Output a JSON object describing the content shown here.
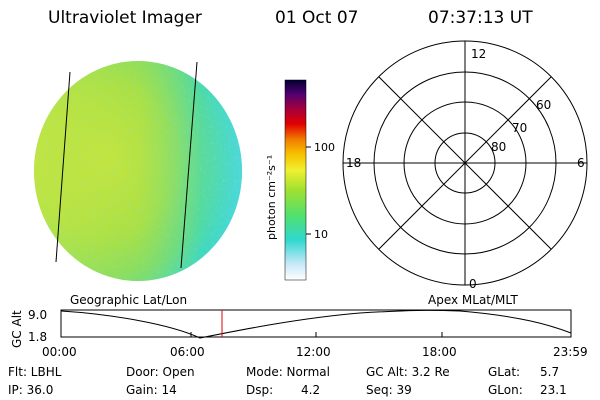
{
  "header": {
    "title": "Ultraviolet Imager",
    "date": "01 Oct 07",
    "time": "07:37:13 UT"
  },
  "colorbar": {
    "label": "photon cm⁻²s⁻¹",
    "ticks": [
      "100",
      "10"
    ],
    "scale": "log",
    "colors": [
      "#ffffff",
      "#c8e8f8",
      "#30d8d0",
      "#50e070",
      "#a0e030",
      "#f0f030",
      "#f8c000",
      "#f08000",
      "#e00000",
      "#a00040",
      "#500070",
      "#000030"
    ]
  },
  "polar_grid": {
    "mlt_labels": [
      "12",
      "6",
      "0",
      "18"
    ],
    "mlat_labels": [
      "60",
      "70",
      "80"
    ]
  },
  "timeline": {
    "left_title": "Geographic Lat/Lon",
    "right_title": "Apex  MLat/MLT",
    "ylabel": "GC Alt",
    "ytick_top": "9.0",
    "ytick_bottom": "1.8",
    "xticks": [
      "00:00",
      "06:00",
      "12:00",
      "18:00",
      "23:59"
    ],
    "current_marker_color": "#e00000"
  },
  "status": {
    "flt": "Flt: LBHL",
    "ip": "IP: 36.0",
    "door": "Door: Open",
    "gain": "Gain: 14",
    "mode": "Mode: Normal",
    "dsp_label": "Dsp:",
    "dsp_value": "4.2",
    "gcalt": "GC Alt: 3.2 Re",
    "seq": "Seq: 39",
    "glat_label": "GLat:",
    "glat_value": "5.7",
    "glon_label": "GLon:",
    "glon_value": "23.1"
  }
}
